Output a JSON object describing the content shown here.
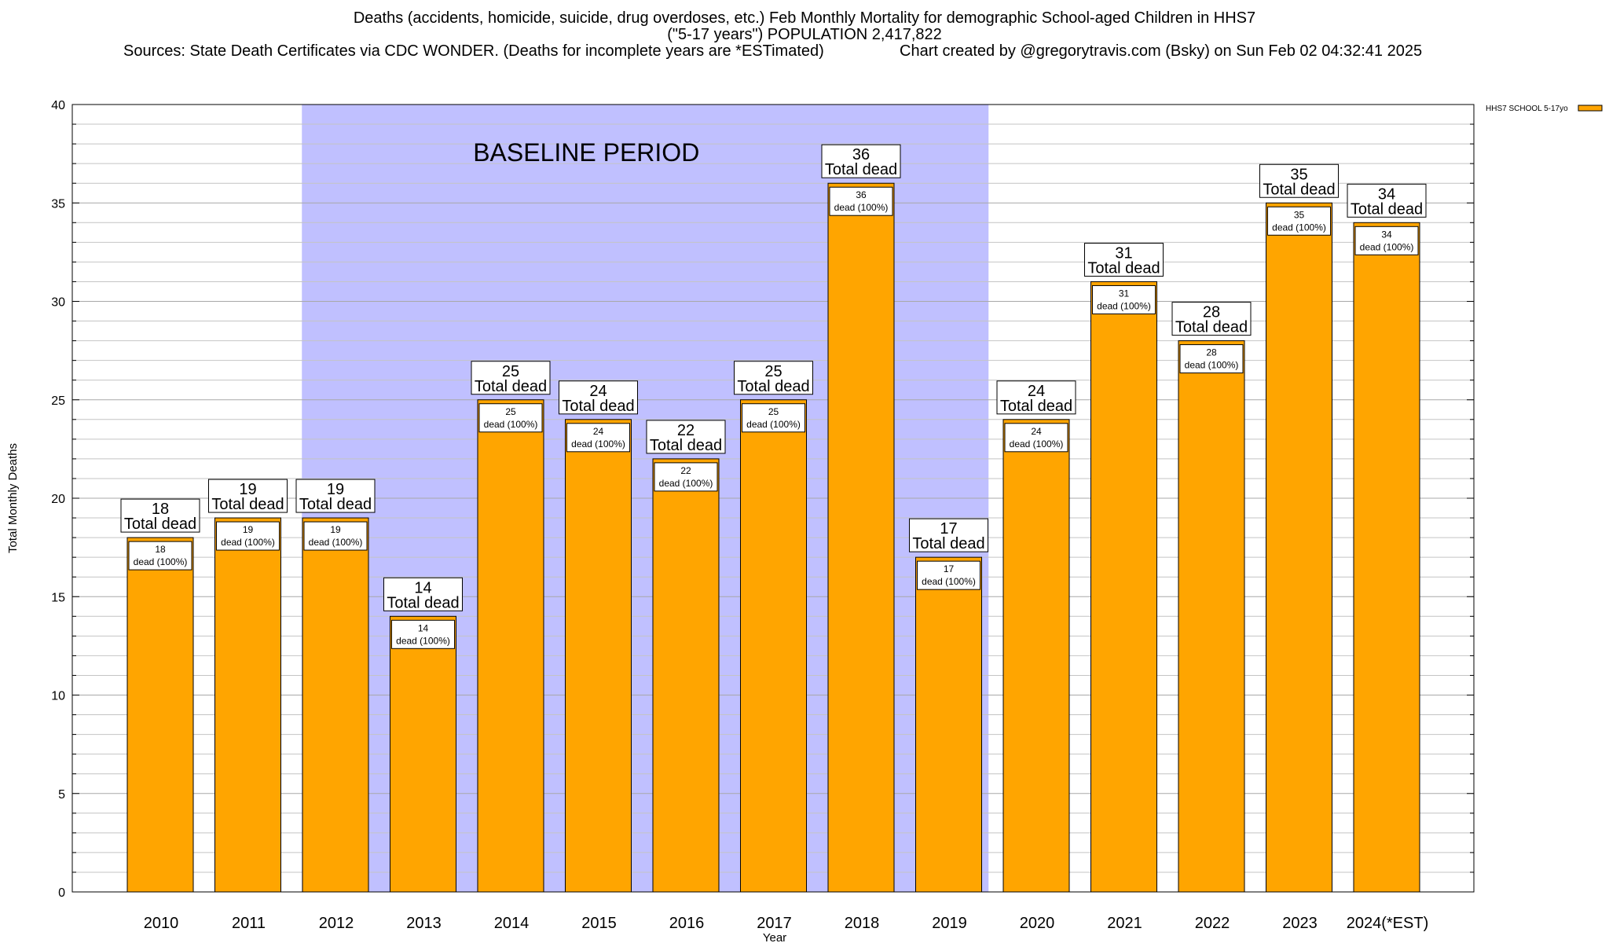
{
  "header": {
    "line1": "Deaths (accidents, homicide, suicide, drug overdoses, etc.) Feb Monthly Mortality for demographic School-aged Children in HHS7",
    "line2": "(\"5-17 years\") POPULATION 2,417,822",
    "line3_left": "Sources: State Death Certificates via CDC WONDER. (Deaths for incomplete years are *ESTimated)",
    "line3_right": "Chart created by @gregorytravis.com (Bsky) on Sun Feb 02 04:32:41 2025"
  },
  "chart_data": {
    "type": "bar",
    "categories": [
      "2010",
      "2011",
      "2012",
      "2013",
      "2014",
      "2015",
      "2016",
      "2017",
      "2018",
      "2019",
      "2020",
      "2021",
      "2022",
      "2023",
      "2024(*EST)"
    ],
    "series": [
      {
        "name": "HHS7 SCHOOL 5-17yo",
        "values": [
          18,
          19,
          19,
          14,
          25,
          24,
          22,
          25,
          36,
          17,
          24,
          31,
          28,
          35,
          34
        ],
        "color": "#ffa500"
      }
    ],
    "bar_label_suffix": "Total dead",
    "inner_label_suffix": "dead (100%)",
    "xlabel": "Year",
    "ylabel": "Total Monthly Deaths",
    "ylim": [
      0,
      40
    ],
    "yticks": [
      "0",
      "5",
      "10",
      "15",
      "20",
      "25",
      "30",
      "35",
      "40"
    ],
    "grid": true,
    "legend_position": "top-right",
    "baseline_period": {
      "label": "BASELINE PERIOD",
      "from_category": "2012",
      "to_category": "2019",
      "color": "#c0c0ff"
    }
  }
}
